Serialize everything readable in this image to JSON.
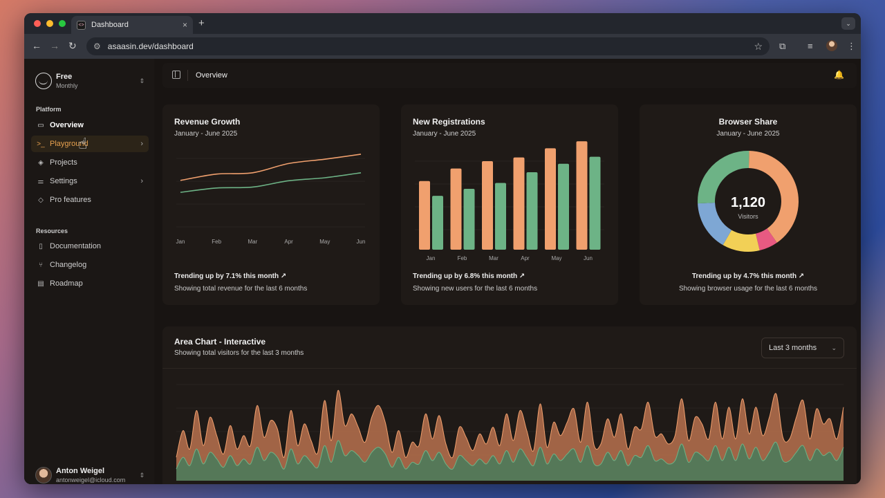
{
  "browser": {
    "tab_title": "Dashboard",
    "tab_close": "×",
    "new_tab": "+",
    "url": "asaasin.dev/dashboard"
  },
  "sidebar": {
    "plan": {
      "name": "Free",
      "sub": "Monthly"
    },
    "sections": {
      "platform": "Platform",
      "resources": "Resources"
    },
    "platform_items": [
      {
        "label": "Overview",
        "icon": "monitor-icon"
      },
      {
        "label": "Playground",
        "icon": "terminal-icon"
      },
      {
        "label": "Projects",
        "icon": "layers-icon"
      },
      {
        "label": "Settings",
        "icon": "sliders-icon"
      },
      {
        "label": "Pro features",
        "icon": "gem-icon"
      }
    ],
    "resource_items": [
      {
        "label": "Documentation",
        "icon": "book-icon"
      },
      {
        "label": "Changelog",
        "icon": "git-icon"
      },
      {
        "label": "Roadmap",
        "icon": "map-icon"
      }
    ],
    "user": {
      "name": "Anton Weigel",
      "email": "antonweigel@icloud.com"
    }
  },
  "topbar": {
    "title": "Overview"
  },
  "cards": {
    "revenue": {
      "title": "Revenue Growth",
      "subtitle": "January - June 2025",
      "trend": "Trending up by 7.1% this month",
      "footer": "Showing total revenue for the last 6 months"
    },
    "registrations": {
      "title": "New Registrations",
      "subtitle": "January - June 2025",
      "trend": "Trending up by 6.8% this month",
      "footer": "Showing new users for the last 6 months"
    },
    "browser": {
      "title": "Browser Share",
      "subtitle": "January - June 2025",
      "center_value": "1,120",
      "center_label": "Visitors",
      "trend": "Trending up by 4.7% this month",
      "footer": "Showing browser usage for the last 6 months"
    },
    "area": {
      "title": "Area Chart - Interactive",
      "subtitle": "Showing total visitors for the last 3 months",
      "range": "Last 3 months"
    }
  },
  "colors": {
    "orange": "#f0a06e",
    "green": "#6db386",
    "blue": "#7ea7d4",
    "yellow": "#f2d056",
    "pink": "#e85a82",
    "accent": "#e8a14f"
  },
  "chart_data": [
    {
      "type": "line",
      "categories": [
        "Jan",
        "Feb",
        "Mar",
        "Apr",
        "May",
        "Jun"
      ],
      "series": [
        {
          "values": [
            186,
            205,
            209,
            237,
            250,
            265
          ]
        },
        {
          "values": [
            150,
            163,
            166,
            185,
            194,
            209
          ]
        }
      ],
      "ylim": [
        50,
        290
      ],
      "grid": true
    },
    {
      "type": "bar",
      "categories": [
        "Jan",
        "Feb",
        "Mar",
        "Apr",
        "May",
        "Jun"
      ],
      "series": [
        {
          "values": [
            186,
            220,
            240,
            250,
            275,
            294
          ]
        },
        {
          "values": [
            146,
            165,
            181,
            210,
            233,
            252
          ]
        }
      ],
      "ylim": [
        0,
        300
      ],
      "grid": true
    },
    {
      "type": "pie",
      "labels": [
        "orange",
        "pink",
        "yellow",
        "blue",
        "green"
      ],
      "values": [
        40,
        6,
        12,
        16,
        26
      ]
    },
    {
      "type": "area",
      "series": [
        {
          "values": [
            140,
            300,
            190,
            420,
            210,
            380,
            270,
            160,
            330,
            190,
            270,
            210,
            450,
            260,
            360,
            310,
            140,
            420,
            210,
            340,
            240,
            170,
            480,
            240,
            540,
            330,
            400,
            320,
            230,
            380,
            450,
            350,
            170,
            300,
            140,
            230,
            210,
            400,
            250,
            390,
            220,
            140,
            320,
            260,
            180,
            280,
            220,
            320,
            210,
            400,
            240,
            420,
            300,
            180,
            460,
            200,
            350,
            270,
            350,
            430,
            230,
            470,
            210,
            220,
            370,
            260,
            400,
            190,
            320,
            310,
            470,
            270,
            280,
            220,
            270,
            490,
            240,
            380,
            340,
            250,
            470,
            250,
            440,
            250,
            490,
            280,
            440,
            270,
            380,
            520,
            260,
            250,
            380,
            480,
            250,
            430,
            340,
            370,
            250,
            440
          ]
        },
        {
          "values": [
            70,
            140,
            90,
            190,
            100,
            170,
            130,
            80,
            150,
            90,
            130,
            100,
            200,
            120,
            170,
            140,
            70,
            190,
            100,
            150,
            110,
            80,
            210,
            110,
            240,
            150,
            180,
            150,
            110,
            170,
            200,
            160,
            80,
            140,
            70,
            110,
            100,
            180,
            120,
            170,
            100,
            70,
            150,
            120,
            90,
            130,
            100,
            150,
            100,
            180,
            110,
            190,
            140,
            90,
            200,
            100,
            160,
            120,
            160,
            190,
            110,
            210,
            100,
            100,
            170,
            120,
            180,
            90,
            150,
            140,
            210,
            120,
            130,
            100,
            120,
            220,
            110,
            170,
            150,
            120,
            210,
            120,
            200,
            120,
            220,
            130,
            200,
            120,
            170,
            230,
            120,
            120,
            170,
            210,
            120,
            190,
            150,
            170,
            120,
            200
          ]
        }
      ],
      "ylim": [
        0,
        600
      ],
      "grid": true
    }
  ]
}
